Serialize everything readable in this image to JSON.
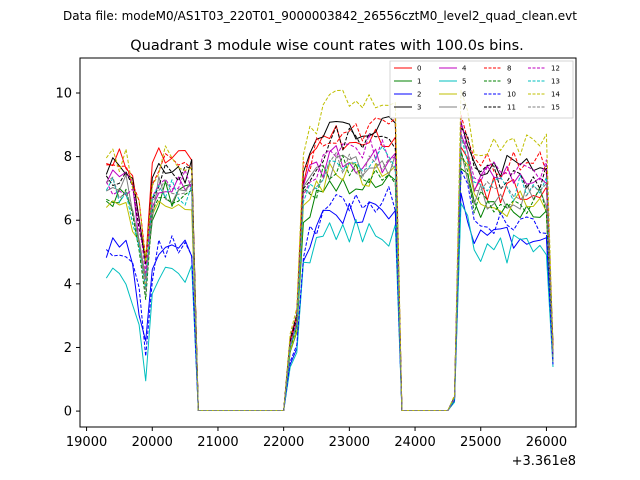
{
  "chart_data": {
    "type": "line",
    "supertitle": "Data file: modeM0/AS1T03_220T01_9000003842_26556cztM0_level2_quad_clean.evt",
    "title": "Quadrant 3 module wise count rates with 100.0s bins.",
    "xlabel": "",
    "ylabel": "",
    "x_offset_label": "+3.361e8",
    "xlim": [
      18900,
      26450
    ],
    "ylim": [
      -0.5,
      11.1
    ],
    "x_ticks": [
      19000,
      20000,
      21000,
      22000,
      23000,
      24000,
      25000,
      26000
    ],
    "x_tick_labels": [
      "19000",
      "20000",
      "21000",
      "22000",
      "23000",
      "24000",
      "25000",
      "26000"
    ],
    "y_ticks": [
      0,
      2,
      4,
      6,
      8,
      10
    ],
    "y_tick_labels": [
      "0",
      "2",
      "4",
      "6",
      "8",
      "10"
    ],
    "legend_location": "upper right",
    "bin_seconds": 100,
    "x_start": 19300,
    "n_bins": 69,
    "gaps": [
      [
        20700,
        22000
      ],
      [
        23800,
        24500
      ]
    ],
    "ramp_bins": [
      [
        22100,
        0.3
      ],
      [
        22200,
        0.4
      ],
      [
        24600,
        0.05
      ]
    ],
    "series": [
      {
        "name": "0",
        "color": "#ff0000",
        "dashed": false,
        "seg": [
          8.0,
          7.5,
          8.6,
          7.0
        ]
      },
      {
        "name": "1",
        "color": "#008000",
        "dashed": false,
        "seg": [
          6.8,
          6.2,
          7.2,
          6.3
        ]
      },
      {
        "name": "2",
        "color": "#0000ff",
        "dashed": false,
        "seg": [
          5.0,
          4.9,
          6.2,
          5.5
        ]
      },
      {
        "name": "3",
        "color": "#000000",
        "dashed": false,
        "seg": [
          7.6,
          7.6,
          8.9,
          7.7
        ]
      },
      {
        "name": "4",
        "color": "#bf00bf",
        "dashed": false,
        "seg": [
          7.3,
          7.1,
          7.9,
          7.3
        ]
      },
      {
        "name": "5",
        "color": "#00bfbf",
        "dashed": false,
        "seg": [
          4.3,
          4.6,
          5.6,
          5.1
        ]
      },
      {
        "name": "6",
        "color": "#bfbf00",
        "dashed": false,
        "seg": [
          6.5,
          6.3,
          7.4,
          6.5
        ]
      },
      {
        "name": "7",
        "color": "#808080",
        "dashed": false,
        "seg": [
          7.0,
          6.8,
          7.7,
          6.7
        ]
      },
      {
        "name": "8",
        "color": "#ff0000",
        "dashed": true,
        "seg": [
          7.8,
          7.5,
          8.8,
          7.8
        ]
      },
      {
        "name": "9",
        "color": "#008000",
        "dashed": true,
        "seg": [
          6.7,
          6.6,
          7.6,
          6.6
        ]
      },
      {
        "name": "10",
        "color": "#0000ff",
        "dashed": true,
        "seg": [
          5.1,
          5.2,
          6.7,
          6.0
        ]
      },
      {
        "name": "11",
        "color": "#000000",
        "dashed": true,
        "seg": [
          7.4,
          7.3,
          8.6,
          7.3
        ]
      },
      {
        "name": "12",
        "color": "#bf00bf",
        "dashed": true,
        "seg": [
          7.2,
          7.0,
          8.3,
          7.5
        ]
      },
      {
        "name": "13",
        "color": "#00bfbf",
        "dashed": true,
        "seg": [
          6.9,
          6.7,
          7.9,
          7.0
        ]
      },
      {
        "name": "14",
        "color": "#bfbf00",
        "dashed": true,
        "seg": [
          7.9,
          8.1,
          9.9,
          8.4
        ]
      },
      {
        "name": "15",
        "color": "#808080",
        "dashed": true,
        "seg": [
          7.1,
          6.9,
          7.7,
          6.9
        ]
      }
    ]
  }
}
